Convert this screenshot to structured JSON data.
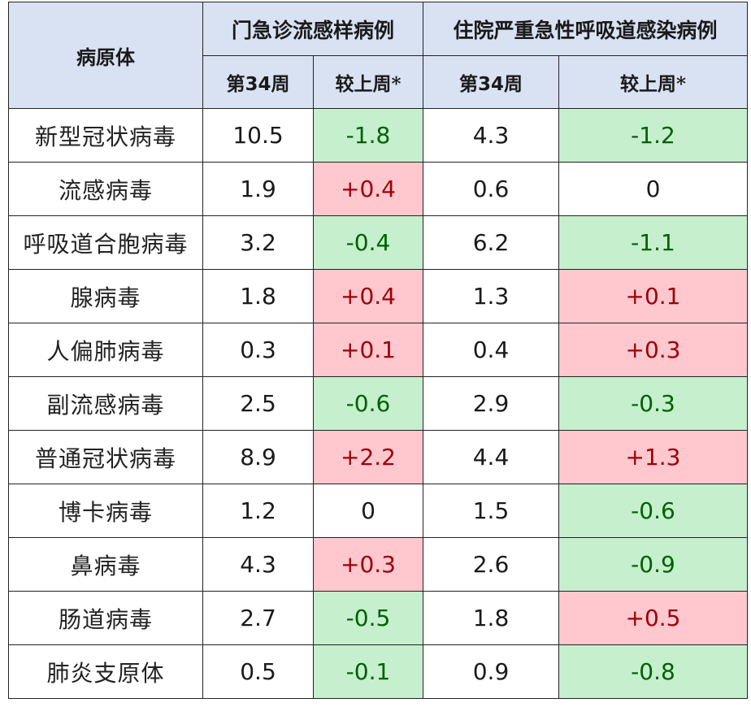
{
  "table": {
    "pathogen_header": "病原体",
    "group_outpatient": "门急诊流感样病例",
    "group_inpatient": "住院严重急性呼吸道感染病例",
    "week_label_prefix": "第",
    "week_label_number": "34",
    "week_label_suffix": "周",
    "change_label": "较上周*",
    "rows": [
      {
        "name": "新型冠状病毒",
        "op_week": "10.5",
        "op_change": "-1.8",
        "op_trend": "neg",
        "ip_week": "4.3",
        "ip_change": "-1.2",
        "ip_trend": "neg"
      },
      {
        "name": "流感病毒",
        "op_week": "1.9",
        "op_change": "+0.4",
        "op_trend": "pos",
        "ip_week": "0.6",
        "ip_change": "0",
        "ip_trend": "zero"
      },
      {
        "name": "呼吸道合胞病毒",
        "op_week": "3.2",
        "op_change": "-0.4",
        "op_trend": "neg",
        "ip_week": "6.2",
        "ip_change": "-1.1",
        "ip_trend": "neg"
      },
      {
        "name": "腺病毒",
        "op_week": "1.8",
        "op_change": "+0.4",
        "op_trend": "pos",
        "ip_week": "1.3",
        "ip_change": "+0.1",
        "ip_trend": "pos"
      },
      {
        "name": "人偏肺病毒",
        "op_week": "0.3",
        "op_change": "+0.1",
        "op_trend": "pos",
        "ip_week": "0.4",
        "ip_change": "+0.3",
        "ip_trend": "pos"
      },
      {
        "name": "副流感病毒",
        "op_week": "2.5",
        "op_change": "-0.6",
        "op_trend": "neg",
        "ip_week": "2.9",
        "ip_change": "-0.3",
        "ip_trend": "neg"
      },
      {
        "name": "普通冠状病毒",
        "op_week": "8.9",
        "op_change": "+2.2",
        "op_trend": "pos",
        "ip_week": "4.4",
        "ip_change": "+1.3",
        "ip_trend": "pos"
      },
      {
        "name": "博卡病毒",
        "op_week": "1.2",
        "op_change": "0",
        "op_trend": "zero",
        "ip_week": "1.5",
        "ip_change": "-0.6",
        "ip_trend": "neg"
      },
      {
        "name": "鼻病毒",
        "op_week": "4.3",
        "op_change": "+0.3",
        "op_trend": "pos",
        "ip_week": "2.6",
        "ip_change": "-0.9",
        "ip_trend": "neg"
      },
      {
        "name": "肠道病毒",
        "op_week": "2.7",
        "op_change": "-0.5",
        "op_trend": "neg",
        "ip_week": "1.8",
        "ip_change": "+0.5",
        "ip_trend": "pos"
      },
      {
        "name": "肺炎支原体",
        "op_week": "0.5",
        "op_change": "-0.1",
        "op_trend": "neg",
        "ip_week": "0.9",
        "ip_change": "-0.8",
        "ip_trend": "neg"
      }
    ]
  },
  "colors": {
    "header_bg": "#d9e2f3",
    "decrease_bg": "#c6efce",
    "decrease_text": "#006100",
    "increase_bg": "#ffc7ce",
    "increase_text": "#9c0006"
  }
}
